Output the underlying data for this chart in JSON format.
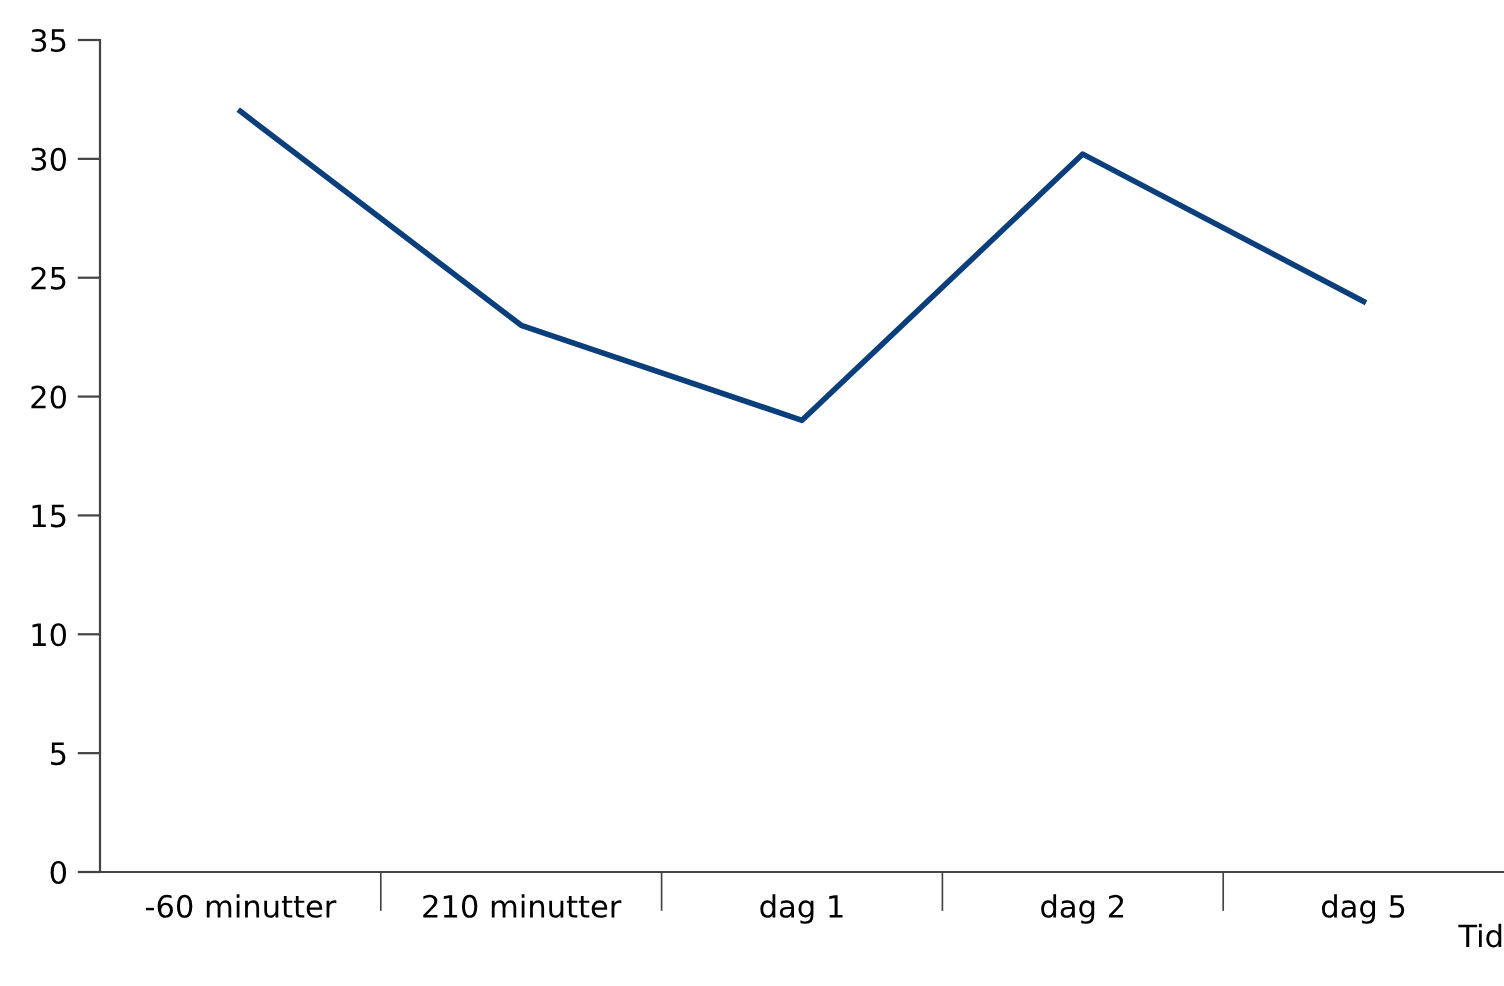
{
  "chart_data": {
    "type": "line",
    "xlabel": "Tid",
    "categories": [
      "-60 minutter",
      "210 minutter",
      "dag 1",
      "dag 2",
      "dag 5"
    ],
    "series": [
      {
        "color": "#0a3f7c",
        "values": [
          32,
          23,
          19,
          30.2,
          24
        ]
      }
    ],
    "ylim": [
      0,
      35
    ],
    "yticks": [
      0,
      5,
      10,
      15,
      20,
      25,
      30,
      35
    ],
    "grid": false,
    "legend": false,
    "marker": "none",
    "line_style": "solid"
  }
}
